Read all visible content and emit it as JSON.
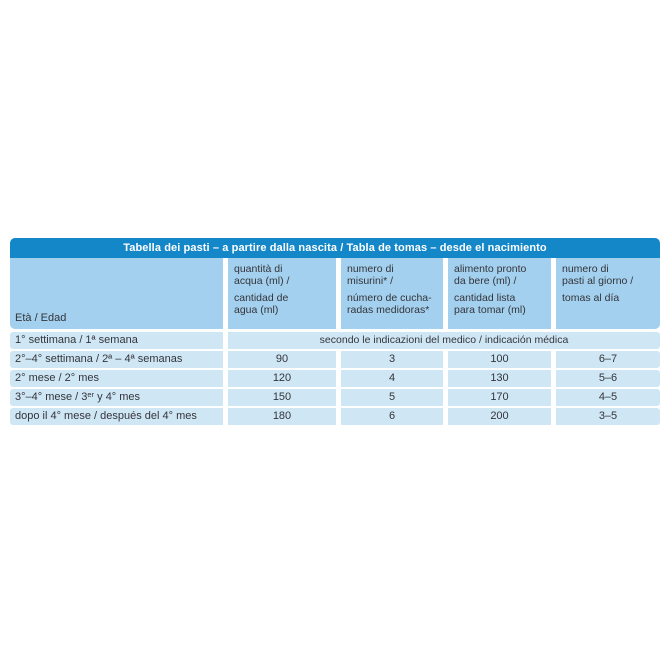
{
  "colors": {
    "title_bar": "#1487c9",
    "header_bg": "#a3d0ee",
    "row_bg": "#cfe7f5",
    "text": "#34343a",
    "title_text": "#ffffff"
  },
  "table": {
    "title": "Tabella dei pasti – a partire dalla nascita / Tabla de tomas – desde el nacimiento",
    "header": {
      "age_label": "Età / Edad",
      "columns": [
        {
          "it": "quantità di\nacqua (ml) /",
          "es": "cantidad de\nagua (ml)"
        },
        {
          "it": "numero di\nmisurini* /",
          "es": "número de cucha-\nradas medidoras*"
        },
        {
          "it": "alimento pronto\nda bere (ml) /",
          "es": "cantidad lista\npara tomar (ml)"
        },
        {
          "it": "numero di\npasti al giorno /",
          "es": "tomas al día"
        }
      ]
    },
    "rows": [
      {
        "label": "1° settimana / 1ª semana",
        "merged": "secondo le indicazioni del medico / indicación médica"
      },
      {
        "label": "2°–4° settimana / 2ª – 4ª semanas",
        "values": [
          "90",
          "3",
          "100",
          "6–7"
        ]
      },
      {
        "label": "2° mese / 2° mes",
        "values": [
          "120",
          "4",
          "130",
          "5–6"
        ]
      },
      {
        "label_pre": "3°–4° mese / 3",
        "label_sup": "er",
        "label_post": " y 4° mes",
        "values": [
          "150",
          "5",
          "170",
          "4–5"
        ]
      },
      {
        "label": "dopo il 4° mese / después del 4° mes",
        "values": [
          "180",
          "6",
          "200",
          "3–5"
        ]
      }
    ]
  }
}
